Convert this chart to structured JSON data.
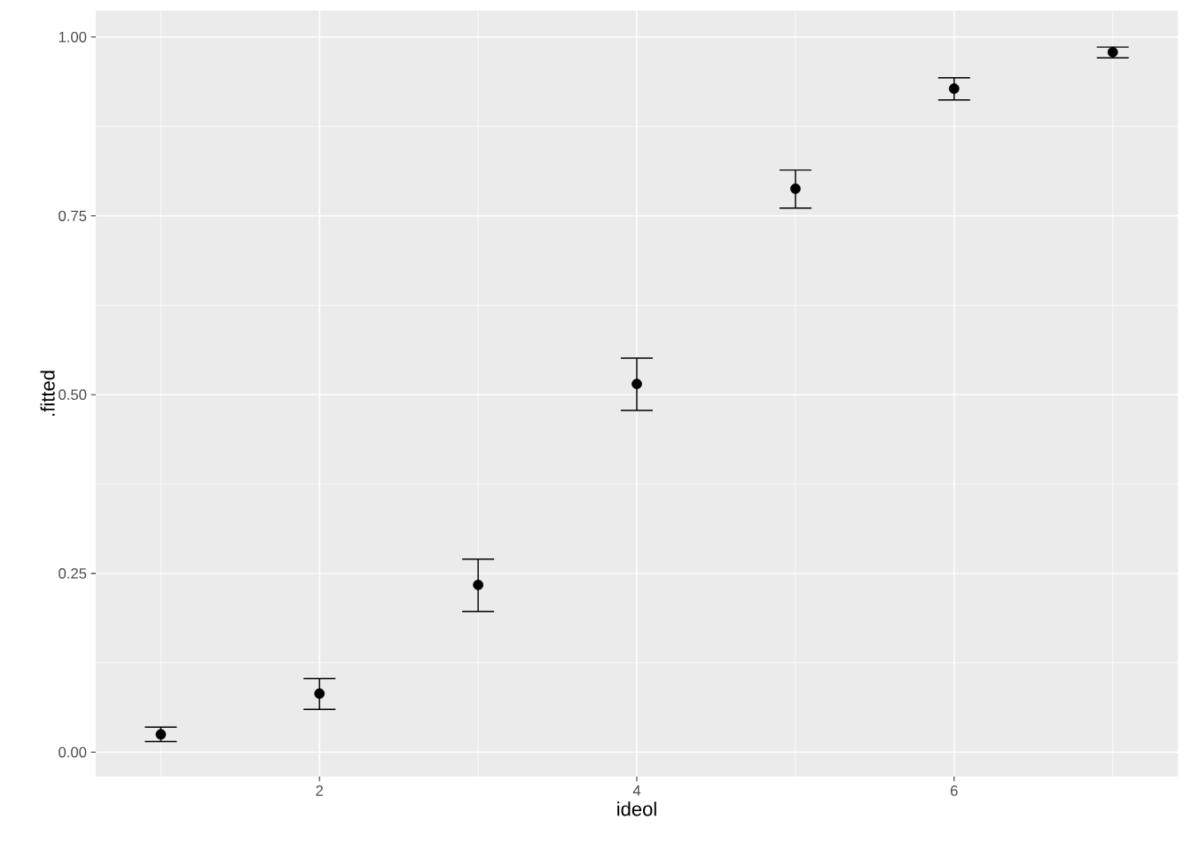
{
  "chart_data": {
    "type": "scatter",
    "xlabel": "ideol",
    "ylabel": ".fitted",
    "x": [
      1,
      2,
      3,
      4,
      5,
      6,
      7
    ],
    "values": [
      0.025,
      0.082,
      0.234,
      0.515,
      0.788,
      0.928,
      0.979
    ],
    "errors": [
      [
        0.015,
        0.035
      ],
      [
        0.06,
        0.103
      ],
      [
        0.197,
        0.27
      ],
      [
        0.478,
        0.551
      ],
      [
        0.761,
        0.814
      ],
      [
        0.912,
        0.943
      ],
      [
        0.971,
        0.986
      ]
    ],
    "color": "#000000",
    "grid": true,
    "xlim": [
      0.59,
      7.41
    ],
    "ylim": [
      -0.034,
      1.037
    ],
    "xticks": [
      2,
      4,
      6
    ],
    "yticks": [
      {
        "value": 0,
        "label": "0.00"
      },
      {
        "value": 0.25,
        "label": "0.25"
      },
      {
        "value": 0.5,
        "label": "0.50"
      },
      {
        "value": 0.75,
        "label": "0.75"
      },
      {
        "value": 1,
        "label": "1.00"
      }
    ]
  }
}
